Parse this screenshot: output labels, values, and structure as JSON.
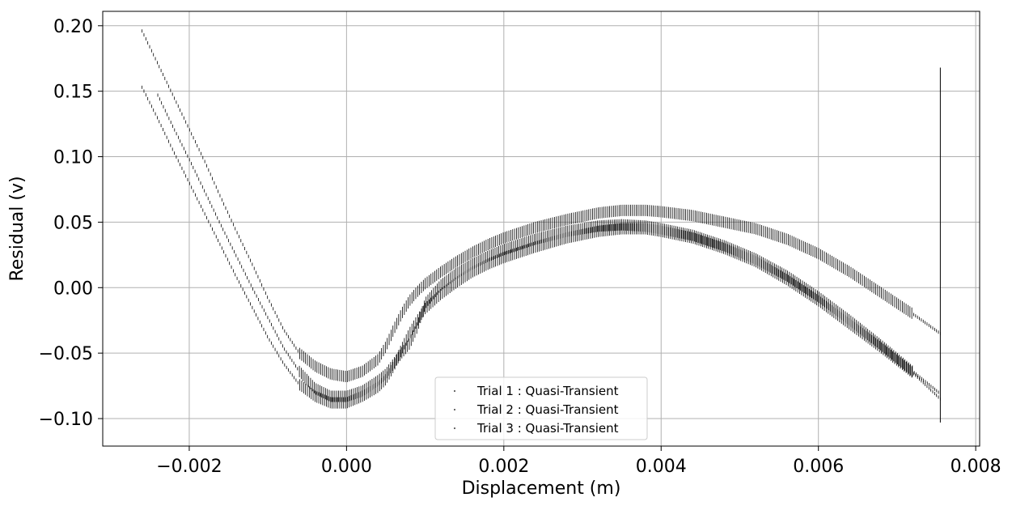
{
  "chart_data": {
    "type": "scatter",
    "title": "",
    "xlabel": "Displacement (m)",
    "ylabel": "Residual (v)",
    "xlim": [
      -0.0031,
      0.00805
    ],
    "ylim": [
      -0.121,
      0.211
    ],
    "x_ticks": [
      -0.002,
      0.0,
      0.002,
      0.004,
      0.006,
      0.008
    ],
    "x_tick_labels": [
      "−0.002",
      "0.000",
      "0.002",
      "0.004",
      "0.006",
      "0.008"
    ],
    "y_ticks": [
      -0.1,
      -0.05,
      0.0,
      0.05,
      0.1,
      0.15,
      0.2
    ],
    "y_tick_labels": [
      "−0.10",
      "−0.05",
      "0.00",
      "0.05",
      "0.10",
      "0.15",
      "0.20"
    ],
    "grid": true,
    "legend_position": "bottom-center",
    "marker_color": "#000000",
    "grid_color": "#b0b0b0",
    "series": [
      {
        "name": "Trial 1 : Quasi-Transient",
        "x": [
          -0.0026,
          -0.0024,
          -0.0022,
          -0.002,
          -0.0018,
          -0.0016,
          -0.0014,
          -0.0012,
          -0.001,
          -0.0008,
          -0.0006,
          -0.0004,
          -0.0002,
          0.0,
          0.0002,
          0.0004,
          0.0005,
          0.0006,
          0.0007,
          0.0008,
          0.0009,
          0.001,
          0.0012,
          0.0014,
          0.0016,
          0.0018,
          0.002,
          0.0024,
          0.0028,
          0.0032,
          0.0035,
          0.0038,
          0.004,
          0.0044,
          0.0048,
          0.0052,
          0.0056,
          0.006,
          0.0064,
          0.0068,
          0.0072,
          0.00755
        ],
        "y": [
          0.196,
          0.171,
          0.146,
          0.121,
          0.096,
          0.069,
          0.043,
          0.018,
          -0.008,
          -0.032,
          -0.05,
          -0.06,
          -0.066,
          -0.068,
          -0.064,
          -0.055,
          -0.045,
          -0.032,
          -0.02,
          -0.01,
          -0.003,
          0.003,
          0.012,
          0.02,
          0.027,
          0.033,
          0.038,
          0.046,
          0.052,
          0.057,
          0.059,
          0.059,
          0.058,
          0.055,
          0.05,
          0.045,
          0.037,
          0.026,
          0.012,
          -0.004,
          -0.02,
          -0.035
        ]
      },
      {
        "name": "Trial 2 : Quasi-Transient",
        "x": [
          -0.0026,
          -0.0024,
          -0.0022,
          -0.002,
          -0.0018,
          -0.0016,
          -0.0014,
          -0.0012,
          -0.001,
          -0.0008,
          -0.0006,
          -0.0004,
          -0.0002,
          0.0,
          0.0002,
          0.0004,
          0.0005,
          0.0006,
          0.0007,
          0.0008,
          0.0009,
          0.001,
          0.0012,
          0.0014,
          0.0016,
          0.0018,
          0.002,
          0.0024,
          0.0028,
          0.0032,
          0.0035,
          0.0038,
          0.004,
          0.0044,
          0.0048,
          0.0052,
          0.0056,
          0.006,
          0.0064,
          0.0068,
          0.0072,
          0.00755
        ],
        "y": [
          0.153,
          0.129,
          0.104,
          0.08,
          0.056,
          0.032,
          0.008,
          -0.015,
          -0.038,
          -0.058,
          -0.074,
          -0.083,
          -0.088,
          -0.088,
          -0.083,
          -0.076,
          -0.07,
          -0.06,
          -0.047,
          -0.035,
          -0.025,
          -0.016,
          -0.005,
          0.004,
          0.012,
          0.018,
          0.023,
          0.031,
          0.038,
          0.043,
          0.045,
          0.045,
          0.043,
          0.038,
          0.03,
          0.02,
          0.006,
          -0.01,
          -0.028,
          -0.046,
          -0.065,
          -0.085
        ]
      },
      {
        "name": "Trial 3 : Quasi-Transient",
        "x": [
          -0.0024,
          -0.0022,
          -0.002,
          -0.0018,
          -0.0016,
          -0.0014,
          -0.0012,
          -0.001,
          -0.0008,
          -0.0006,
          -0.0004,
          -0.0002,
          0.0,
          0.0002,
          0.0004,
          0.0005,
          0.0006,
          0.0007,
          0.0008,
          0.0009,
          0.001,
          0.0012,
          0.0014,
          0.0016,
          0.0018,
          0.002,
          0.0024,
          0.0028,
          0.0032,
          0.0035,
          0.0038,
          0.004,
          0.0044,
          0.0048,
          0.0052,
          0.0056,
          0.006,
          0.0064,
          0.0068,
          0.0072,
          0.00755
        ],
        "y": [
          0.147,
          0.122,
          0.098,
          0.073,
          0.048,
          0.024,
          0.0,
          -0.023,
          -0.046,
          -0.064,
          -0.077,
          -0.083,
          -0.083,
          -0.079,
          -0.071,
          -0.066,
          -0.058,
          -0.05,
          -0.043,
          -0.03,
          -0.012,
          0.002,
          0.011,
          0.018,
          0.024,
          0.029,
          0.037,
          0.043,
          0.047,
          0.048,
          0.047,
          0.045,
          0.04,
          0.032,
          0.022,
          0.009,
          -0.007,
          -0.025,
          -0.044,
          -0.064,
          -0.081
        ]
      }
    ],
    "annotations": [
      {
        "type": "vertical_segment",
        "x": 0.00755,
        "y0": -0.103,
        "y1": 0.168
      }
    ]
  }
}
